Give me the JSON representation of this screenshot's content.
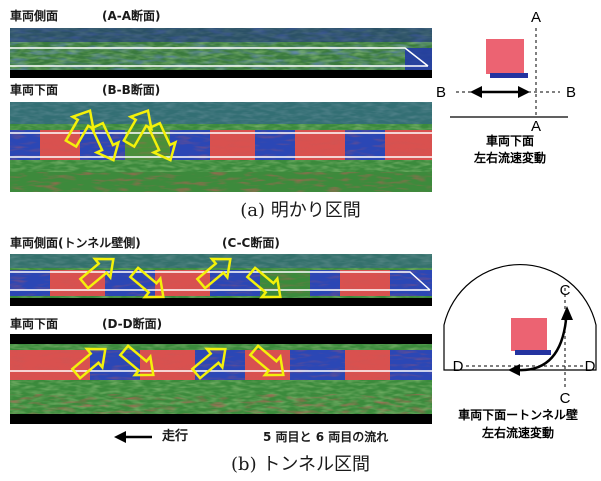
{
  "section_a": {
    "panel1_title": "車両側面",
    "panel1_section": "(A-A断面)",
    "panel2_title": "車両下面",
    "panel2_section": "(B-B断面)",
    "diagram": {
      "label_a_top": "A",
      "label_a_bottom": "A",
      "label_b_left": "B",
      "label_b_right": "B",
      "caption_line1": "車両下面",
      "caption_line2": "左右流速変動"
    },
    "caption": "(a) 明かり区間"
  },
  "section_b": {
    "panel1_title": "車両側面(トンネル壁側)",
    "panel1_section": "(C-C断面)",
    "panel2_title": "車両下面",
    "panel2_section": "(D-D断面)",
    "direction_label": "走行",
    "flow_note": "5 両目と 6 両目の流れ",
    "diagram": {
      "label_c_top": "C",
      "label_c_bottom": "C",
      "label_d_left": "D",
      "label_d_right": "D",
      "caption_line1": "車両下面ートンネル壁",
      "caption_line2": "左右流速変動"
    },
    "caption": "(b) トンネル区間"
  },
  "colors": {
    "field_green": "#3f8f3a",
    "field_blue": "#2b47b5",
    "field_red": "#d9514f",
    "arrow_yellow": "#f4f10a",
    "car_pink": "#ec6372",
    "car_shadow": "#2433a0",
    "border_black": "#000000"
  }
}
